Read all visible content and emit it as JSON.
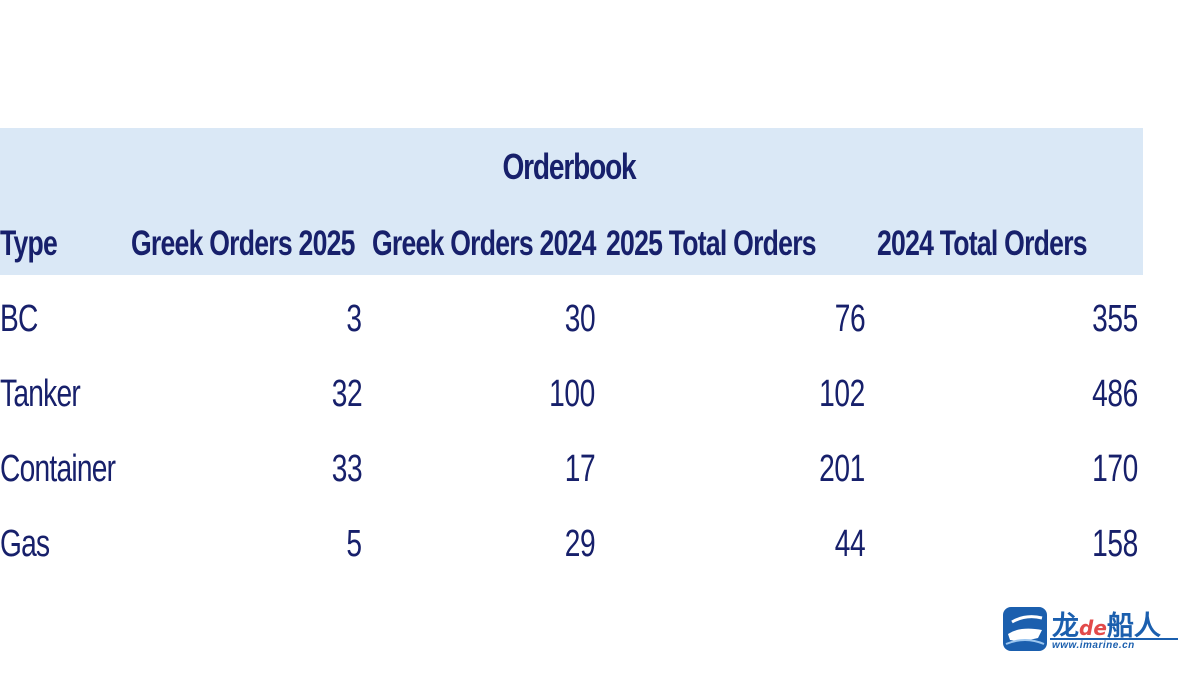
{
  "table": {
    "title": "Orderbook",
    "columns": [
      "Type",
      "Greek Orders 2025",
      "Greek Orders 2024",
      "2025 Total Orders",
      "2024 Total Orders"
    ],
    "rows": [
      {
        "type": "BC",
        "greek_2025": "3",
        "greek_2024": "30",
        "total_2025": "76",
        "total_2024": "355"
      },
      {
        "type": "Tanker",
        "greek_2025": "32",
        "greek_2024": "100",
        "total_2025": "102",
        "total_2024": "486"
      },
      {
        "type": "Container",
        "greek_2025": "33",
        "greek_2024": "17",
        "total_2025": "201",
        "total_2024": "170"
      },
      {
        "type": "Gas",
        "greek_2025": "5",
        "greek_2024": "29",
        "total_2025": "44",
        "total_2024": "158"
      }
    ]
  },
  "logo": {
    "cn_part1": "龙",
    "de": "de",
    "cn_part2": "船人",
    "url": "www.imarine.cn"
  },
  "colors": {
    "header_background": "#dae8f6",
    "text": "#17206b",
    "logo_blue": "#1b5fae",
    "logo_red": "#e24a4a"
  }
}
